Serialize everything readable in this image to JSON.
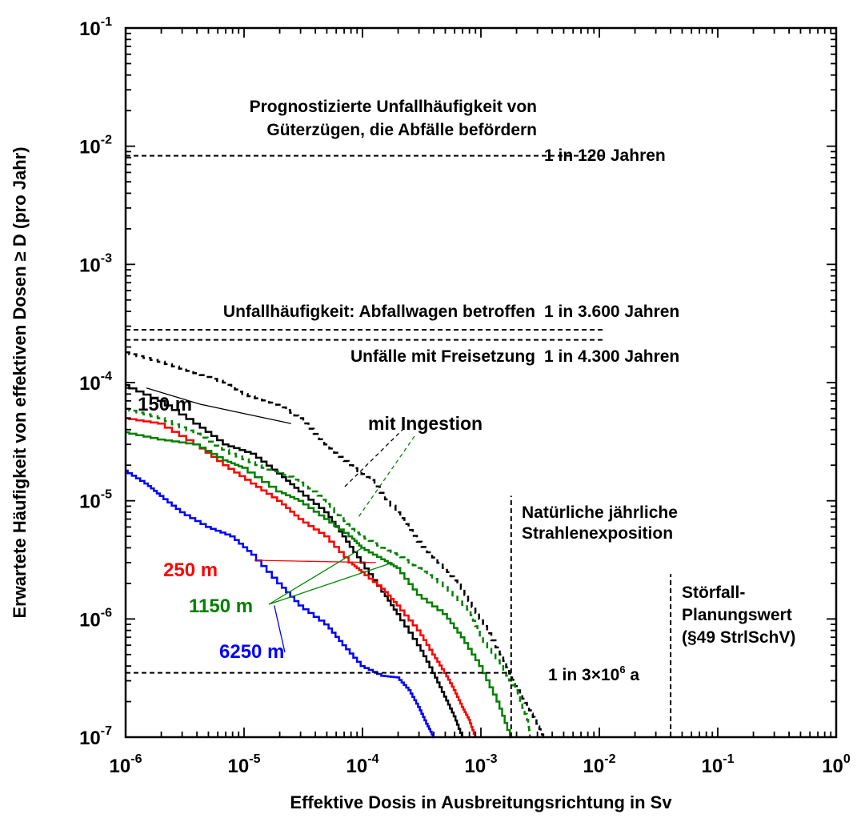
{
  "chart_data": {
    "type": "line",
    "x_scale": "log",
    "y_scale": "log",
    "xlim": [
      1e-06,
      1
    ],
    "ylim": [
      1e-07,
      0.1
    ],
    "grid": false,
    "legend": "none",
    "xlabel": "Effektive Dosis in Ausbreitungsrichtung in Sv",
    "ylabel": "Erwartete Häufigkeit von effektiven Dosen ≥ D (pro Jahr)",
    "x_ticks": [
      {
        "base": "10",
        "exp": "-6",
        "value": 1e-06
      },
      {
        "base": "10",
        "exp": "-5",
        "value": 1e-05
      },
      {
        "base": "10",
        "exp": "-4",
        "value": 0.0001
      },
      {
        "base": "10",
        "exp": "-3",
        "value": 0.001
      },
      {
        "base": "10",
        "exp": "-2",
        "value": 0.01
      },
      {
        "base": "10",
        "exp": "-1",
        "value": 0.1
      },
      {
        "base": "10",
        "exp": "0",
        "value": 1
      }
    ],
    "y_ticks": [
      {
        "base": "10",
        "exp": "-7",
        "value": 1e-07
      },
      {
        "base": "10",
        "exp": "-6",
        "value": 1e-06
      },
      {
        "base": "10",
        "exp": "-5",
        "value": 1e-05
      },
      {
        "base": "10",
        "exp": "-4",
        "value": 0.0001
      },
      {
        "base": "10",
        "exp": "-3",
        "value": 0.001
      },
      {
        "base": "10",
        "exp": "-2",
        "value": 0.01
      },
      {
        "base": "10",
        "exp": "-1",
        "value": 0.1
      }
    ],
    "series": [
      {
        "id": "150m",
        "color": "#000000",
        "dashed": false,
        "x": [
          1e-06,
          2e-06,
          4e-06,
          7e-06,
          1.2e-05,
          2e-05,
          3e-05,
          5e-05,
          7e-05,
          0.0001,
          0.00015,
          0.0002,
          0.0003,
          0.0004,
          0.0005,
          0.0006,
          0.0007
        ],
        "y": [
          9.5e-05,
          7e-05,
          4.5e-05,
          3e-05,
          2.5e-05,
          1.7e-05,
          1.2e-05,
          8e-06,
          5e-06,
          3e-06,
          1.7e-06,
          1.1e-06,
          6e-07,
          3.5e-07,
          2.2e-07,
          1.5e-07,
          1e-07
        ]
      },
      {
        "id": "250m",
        "color": "#ff0000",
        "dashed": false,
        "x": [
          1e-06,
          2e-06,
          4e-06,
          7e-06,
          1.2e-05,
          2e-05,
          3e-05,
          5e-05,
          8e-05,
          0.0001,
          0.00015,
          0.0002,
          0.0003,
          0.0004,
          0.0005,
          0.0006,
          0.0007,
          0.0008,
          0.0009
        ],
        "y": [
          5e-05,
          4.5e-05,
          3e-05,
          2e-05,
          1.4e-05,
          1e-05,
          7e-06,
          5e-06,
          3e-06,
          2.5e-06,
          1.8e-06,
          1.3e-06,
          8e-07,
          5e-07,
          3.5e-07,
          2.5e-07,
          1.8e-07,
          1.4e-07,
          1e-07
        ]
      },
      {
        "id": "1150m",
        "color": "#008000",
        "dashed": false,
        "x": [
          1e-06,
          2e-06,
          4e-06,
          7e-06,
          1e-05,
          2e-05,
          3e-05,
          5e-05,
          8e-05,
          0.0001,
          0.00015,
          0.0002,
          0.0003,
          0.0005,
          0.0007,
          0.001,
          0.0014,
          0.0018
        ],
        "y": [
          3.8e-05,
          3.3e-05,
          3e-05,
          2.2e-05,
          1.9e-05,
          1.2e-05,
          1e-05,
          7e-06,
          5e-06,
          4e-06,
          3.2e-06,
          2.7e-06,
          1.6e-06,
          1.1e-06,
          7e-07,
          4e-07,
          2e-07,
          1e-07
        ]
      },
      {
        "id": "6250m",
        "color": "#0000ff",
        "dashed": false,
        "x": [
          1e-06,
          1.5e-06,
          2e-06,
          3e-06,
          5e-06,
          8e-06,
          1.2e-05,
          2e-05,
          3e-05,
          5e-05,
          7e-05,
          0.0001,
          0.00015,
          0.0002,
          0.00025,
          0.0003,
          0.00035,
          0.0004
        ],
        "y": [
          1.8e-05,
          1.4e-05,
          1.1e-05,
          8e-06,
          6e-06,
          5e-06,
          3.5e-06,
          2e-06,
          1.3e-06,
          9e-07,
          6e-07,
          4e-07,
          3.3e-07,
          3.2e-07,
          2.5e-07,
          1.8e-07,
          1.3e-07,
          1e-07
        ]
      },
      {
        "id": "150m-ingestion",
        "color": "#000000",
        "dashed": true,
        "x": [
          1e-06,
          2e-06,
          4e-06,
          7e-06,
          1e-05,
          2e-05,
          3e-05,
          5e-05,
          8e-05,
          0.00012,
          0.0002,
          0.0003,
          0.0005,
          0.0007,
          0.001,
          0.0015,
          0.002,
          0.0025,
          0.003,
          0.0034
        ],
        "y": [
          0.00018,
          0.00015,
          0.00012,
          0.0001,
          8e-05,
          6.5e-05,
          5e-05,
          3e-05,
          2e-05,
          1.5e-05,
          8e-06,
          4.5e-06,
          2.7e-06,
          1.8e-06,
          1e-06,
          5e-07,
          2.7e-07,
          1.8e-07,
          1.3e-07,
          1e-07
        ]
      },
      {
        "id": "1150m-ingestion",
        "color": "#008000",
        "dashed": true,
        "x": [
          1e-06,
          2e-06,
          4e-06,
          8e-06,
          1.5e-05,
          2.5e-05,
          4e-05,
          6e-05,
          8e-05,
          0.0001,
          0.00015,
          0.0002,
          0.0003,
          0.0005,
          0.0008,
          0.001,
          0.0015,
          0.002,
          0.0025,
          0.0026
        ],
        "y": [
          6e-05,
          5e-05,
          3.7e-05,
          2.5e-05,
          1.9e-05,
          1.6e-05,
          1.2e-05,
          8e-06,
          6e-06,
          5e-06,
          4e-06,
          3.5e-06,
          2.7e-06,
          1.9e-06,
          1.2e-06,
          7e-07,
          4e-07,
          2.5e-07,
          1.4e-07,
          1e-07
        ]
      }
    ],
    "reference_lines": [
      {
        "id": "freight-accident",
        "orientation": "h",
        "value": 0.0083,
        "from": 1e-06,
        "to": 0.011
      },
      {
        "id": "waste-car-affected",
        "orientation": "h",
        "value": 0.00028,
        "from": 1e-06,
        "to": 0.011
      },
      {
        "id": "waste-car-affected-2",
        "orientation": "h",
        "value": 0.00023,
        "from": 1e-06,
        "to": 0.011
      },
      {
        "id": "release-accidents",
        "orientation": "h",
        "value": 0.00033,
        "from": 1e-06,
        "to": 1e-06
      },
      {
        "id": "three-million-years",
        "orientation": "h",
        "value": 3.5e-07,
        "from": 1e-06,
        "to": 0.0018
      },
      {
        "id": "natural-exposure",
        "orientation": "v",
        "value": 0.0018,
        "from": 1e-07,
        "to": 1.1e-05
      },
      {
        "id": "planning-value",
        "orientation": "v",
        "value": 0.04,
        "from": 1e-07,
        "to": 2.4e-06
      }
    ],
    "annotations": [
      {
        "id": "prognosis-line1",
        "text": "Prognostizierte Unfallhäufigkeit von"
      },
      {
        "id": "prognosis-line2",
        "text": "Güterzügen, die Abfälle befördern"
      },
      {
        "id": "one-in-120",
        "text": "1 in 120 Jahren"
      },
      {
        "id": "waste-car",
        "text": "Unfallhäufigkeit: Abfallwagen betroffen"
      },
      {
        "id": "one-in-3600",
        "text": "1 in 3.600 Jahren"
      },
      {
        "id": "release",
        "text": "Unfälle mit Freisetzung"
      },
      {
        "id": "one-in-4300",
        "text": "1 in 4.300 Jahren"
      },
      {
        "id": "ingestion",
        "text": "mit Ingestion"
      },
      {
        "id": "natural-line1",
        "text": "Natürliche jährliche"
      },
      {
        "id": "natural-line2",
        "text": "Strahlenexposition"
      },
      {
        "id": "planning-line1",
        "text": "Störfall-"
      },
      {
        "id": "planning-line2",
        "text": "Planungswert"
      },
      {
        "id": "planning-line3",
        "text": "(§49 StrlSchV)"
      },
      {
        "id": "three-million-prefix",
        "text": "1 in 3×10"
      },
      {
        "id": "three-million-exp",
        "text": "6"
      },
      {
        "id": "three-million-suffix",
        "text": " a"
      }
    ],
    "series_labels": [
      {
        "id": "150m",
        "text": "150 m",
        "color": "#000000"
      },
      {
        "id": "250m",
        "text": "250 m",
        "color": "#ff0000"
      },
      {
        "id": "1150m",
        "text": "1150 m",
        "color": "#008000"
      },
      {
        "id": "6250m",
        "text": "6250 m",
        "color": "#0000ff"
      }
    ]
  }
}
